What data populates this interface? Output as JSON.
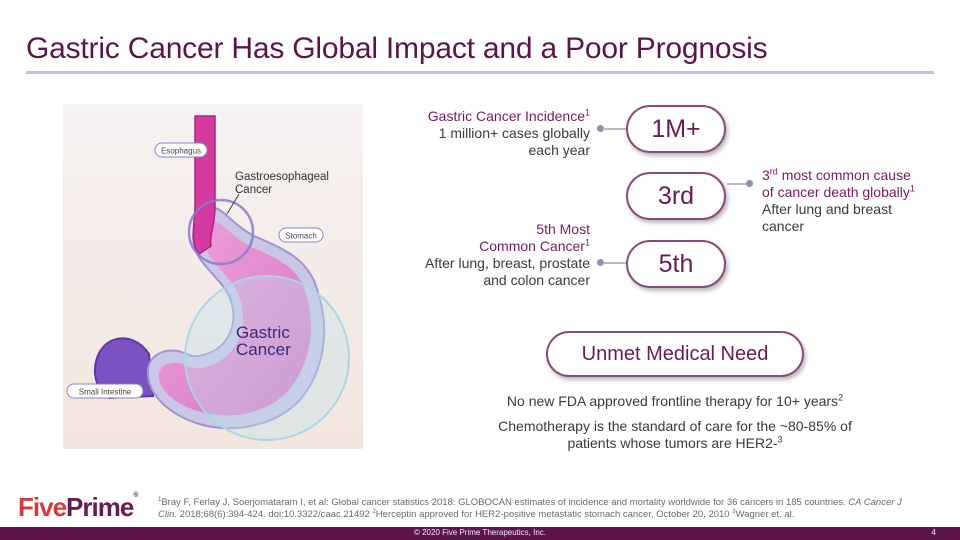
{
  "slide": {
    "title": "Gastric Cancer Has Global Impact and a Poor Prognosis"
  },
  "illustration": {
    "esophagus": "Esophagus",
    "gej": "Gastroesophageal Cancer",
    "stomach": "Stomach",
    "gastric_line1": "Gastric",
    "gastric_line2": "Cancer",
    "small_intestine": "Small Intestine"
  },
  "stats": {
    "incidence": {
      "heading": "Gastric Cancer Incidence",
      "ref": "1",
      "text1": "1 million+ cases globally",
      "text2": "each year",
      "value": "1M+"
    },
    "death": {
      "prefix": "3",
      "sup": "rd",
      "heading_rest": " most common cause",
      "heading2": "of cancer death globally",
      "ref": "1",
      "text1": "After lung and breast",
      "text2": "cancer",
      "value": "3rd"
    },
    "common": {
      "heading1": "5th Most",
      "heading2": "Common Cancer",
      "ref": "1",
      "text1": "After lung, breast, prostate",
      "text2": "and colon cancer",
      "value": "5th"
    }
  },
  "unmet": {
    "title": "Unmet Medical Need",
    "line1": "No new FDA approved frontline therapy for 10+ years",
    "line1_ref": "2",
    "line2a": "Chemotherapy is the standard of care for the ~80-85% of",
    "line2b": "patients whose tumors are HER2-",
    "line2_ref": "3"
  },
  "footnote": {
    "ref1": "1",
    "text1": "Bray F, Ferlay J, Soerjomataram I, et al: Global cancer statistics 2018: GLOBOCAN estimates of incidence and mortality worldwide for 36 cancers in 185 countries. ",
    "journal": "CA Cancer J Clin.",
    "text2": " 2018;68(6):394-424. doi:10.3322/caac.21492 ",
    "ref2": "2",
    "text3": "Herceptin approved for HER2-positive metastatic stomach cancer, October 20, 2010 ",
    "ref3": "3",
    "text4": "Wagner et. al."
  },
  "logo": {
    "five": "Five",
    "prime": "Prime",
    "reg": "®"
  },
  "footer": {
    "copyright": "© 2020 Five Prime Therapeutics, Inc.",
    "page": "4"
  },
  "colors": {
    "accent": "#5b1548",
    "stomach": "#e78ad3",
    "circle": "#bfe3ec"
  }
}
